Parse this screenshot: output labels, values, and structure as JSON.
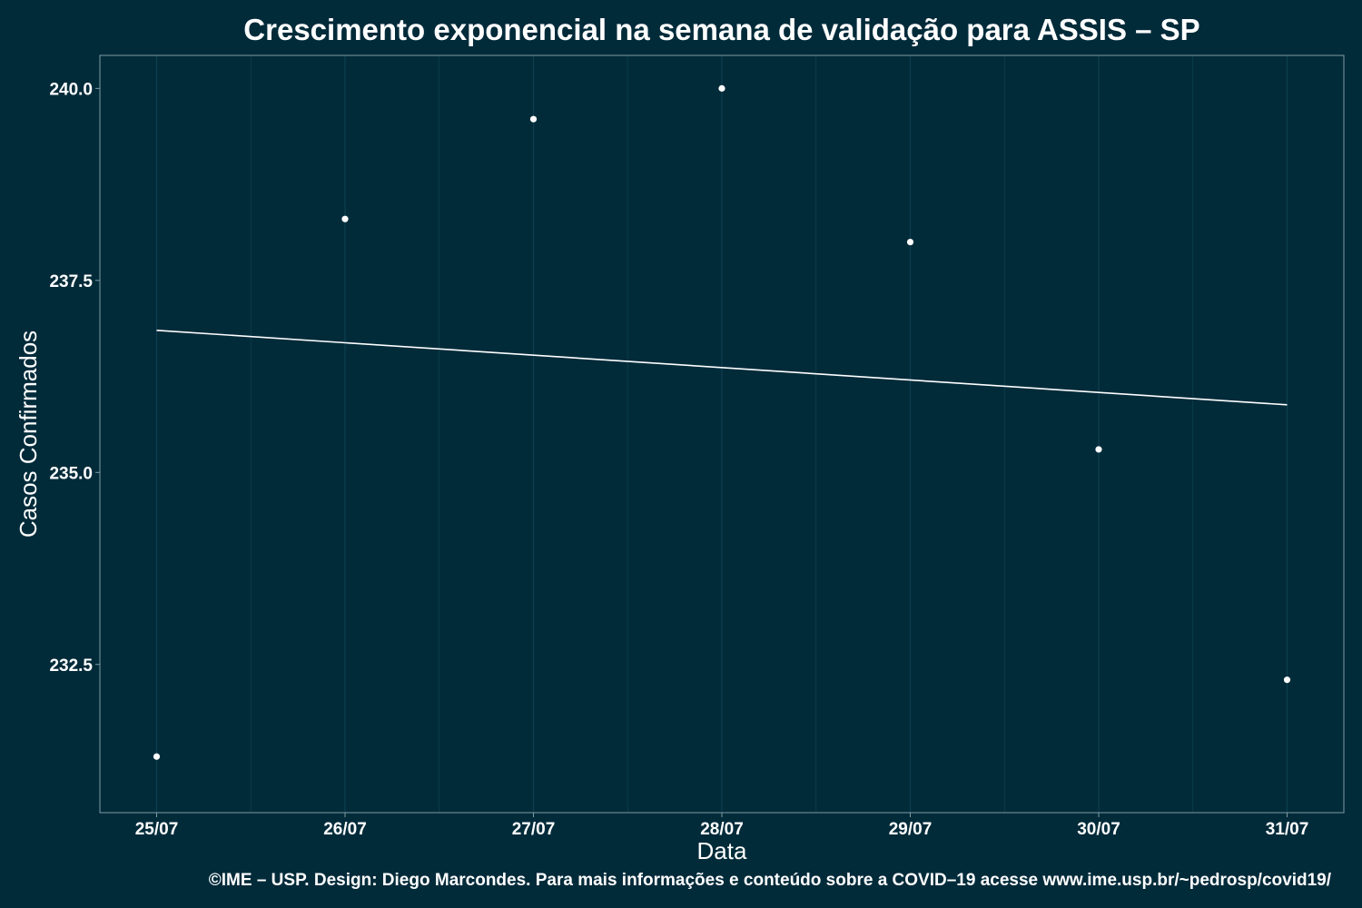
{
  "chart_data": {
    "type": "scatter",
    "title": "Crescimento exponencial na semana de validação para ASSIS – SP",
    "xlabel": "Data",
    "ylabel": "Casos Confirmados",
    "caption": "©IME – USP. Design: Diego Marcondes. Para mais informações e conteúdo sobre a COVID–19 acesse www.ime.usp.br/~pedrosp/covid19/",
    "categories": [
      "25/07",
      "26/07",
      "27/07",
      "28/07",
      "29/07",
      "30/07",
      "31/07"
    ],
    "series": [
      {
        "values": [
          231.3,
          238.3,
          239.6,
          240.0,
          238.0,
          235.3,
          232.3
        ]
      }
    ],
    "trend_line": {
      "start": 236.85,
      "end": 235.88
    },
    "yticks": [
      232.5,
      235.0,
      237.5,
      240.0
    ],
    "ytick_labels": [
      "232.5",
      "235.0",
      "237.5",
      "240.0"
    ],
    "ylim": [
      230.57,
      240.43
    ],
    "grid": "vertical",
    "colors": {
      "background": "#022b3a",
      "points": "#ffffff",
      "line": "#ffffff",
      "grid": "#0d3f4e",
      "border": "#7f9ba3"
    }
  }
}
